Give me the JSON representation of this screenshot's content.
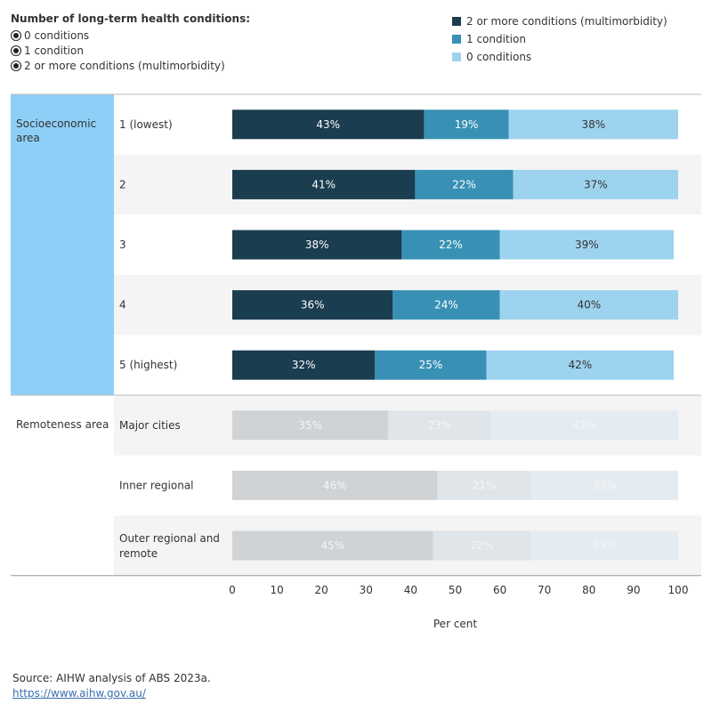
{
  "filter": {
    "title": "Number of long-term health conditions:",
    "options": [
      "0 conditions",
      "1 condition",
      "2 or more conditions (multimorbidity)"
    ]
  },
  "legend": [
    {
      "label": "2 or more conditions (multimorbidity)",
      "color": "#1a3d4f"
    },
    {
      "label": "1 condition",
      "color": "#3891b5"
    },
    {
      "label": "0 conditions",
      "color": "#9dd3ef"
    }
  ],
  "colors": {
    "highlight_group": "#8ecff7",
    "band": "#f4f4f4",
    "faded": [
      "#cfd3d6",
      "#dfe5e9",
      "#e5ecf1"
    ],
    "faded_label": "#f5f5f5"
  },
  "chart_data": {
    "type": "bar",
    "orientation": "horizontal",
    "stacked": true,
    "groups": [
      {
        "name": "Socioeconomic area",
        "highlighted": true,
        "categories": [
          "1 (lowest)",
          "2",
          "3",
          "4",
          "5 (highest)"
        ]
      },
      {
        "name": "Remoteness area",
        "highlighted": false,
        "categories": [
          "Major cities",
          "Inner regional",
          "Outer regional and remote"
        ]
      }
    ],
    "categories": [
      "1 (lowest)",
      "2",
      "3",
      "4",
      "5 (highest)",
      "Major cities",
      "Inner regional",
      "Outer regional and remote"
    ],
    "series": [
      {
        "name": "2 or more conditions (multimorbidity)",
        "values": [
          43,
          41,
          38,
          36,
          32,
          35,
          46,
          45
        ]
      },
      {
        "name": "1 condition",
        "values": [
          19,
          22,
          22,
          24,
          25,
          23,
          21,
          22
        ]
      },
      {
        "name": "0 conditions",
        "values": [
          38,
          37,
          39,
          40,
          42,
          42,
          33,
          33
        ]
      }
    ],
    "xlabel": "Per cent",
    "xlim": [
      0,
      100
    ],
    "xticks": [
      0,
      10,
      20,
      30,
      40,
      50,
      60,
      70,
      80,
      90,
      100
    ],
    "value_suffix": "%"
  },
  "footer": {
    "source": "Source: AIHW analysis of ABS 2023a.",
    "link": "https://www.aihw.gov.au/"
  }
}
